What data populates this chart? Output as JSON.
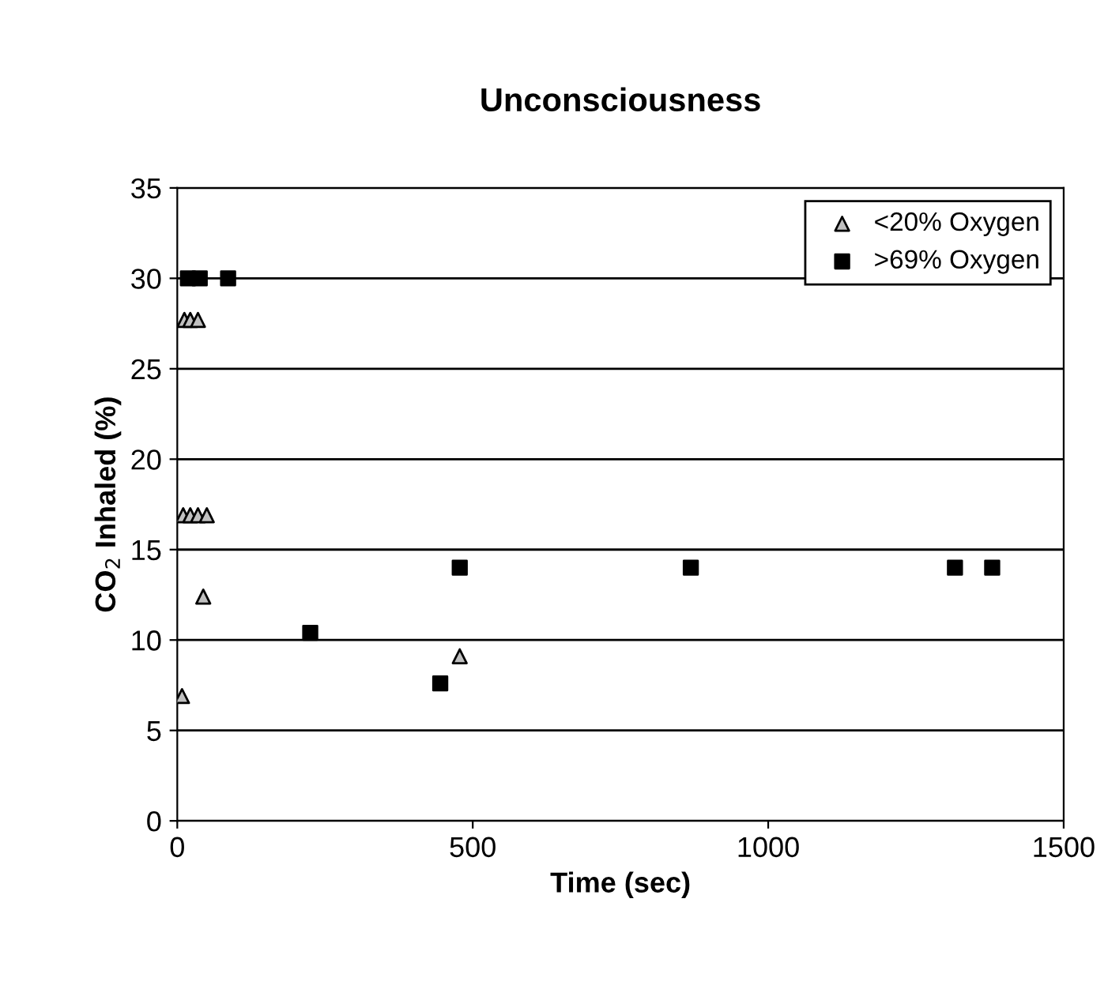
{
  "chart_data": {
    "type": "scatter",
    "title": "Unconsciousness",
    "xlabel": "Time (sec)",
    "ylabel": "CO$_{2}$ Inhaled (%)",
    "xlim": [
      0,
      1500
    ],
    "xticks": [
      0,
      500,
      1000,
      1500
    ],
    "ylim": [
      0,
      35
    ],
    "yticks": [
      0,
      5,
      10,
      15,
      20,
      25,
      30,
      35
    ],
    "grid": "y",
    "legend": "top right",
    "series": [
      {
        "name": "<20% Oxygen",
        "color": "#c0c0c0",
        "marker": "triangle",
        "x": [
          12,
          22,
          35,
          10,
          22,
          35,
          50,
          44,
          8,
          478
        ],
        "values": [
          27.7,
          27.7,
          27.7,
          16.9,
          16.9,
          16.9,
          16.9,
          12.4,
          6.9,
          9.1
        ]
      },
      {
        "name": ">69% Oxygen",
        "color": "#000000",
        "marker": "square",
        "x": [
          18,
          38,
          86,
          225,
          445,
          478,
          869,
          1316,
          1379
        ],
        "values": [
          30,
          30,
          30,
          10.4,
          7.6,
          14,
          14,
          14,
          14
        ]
      }
    ]
  }
}
